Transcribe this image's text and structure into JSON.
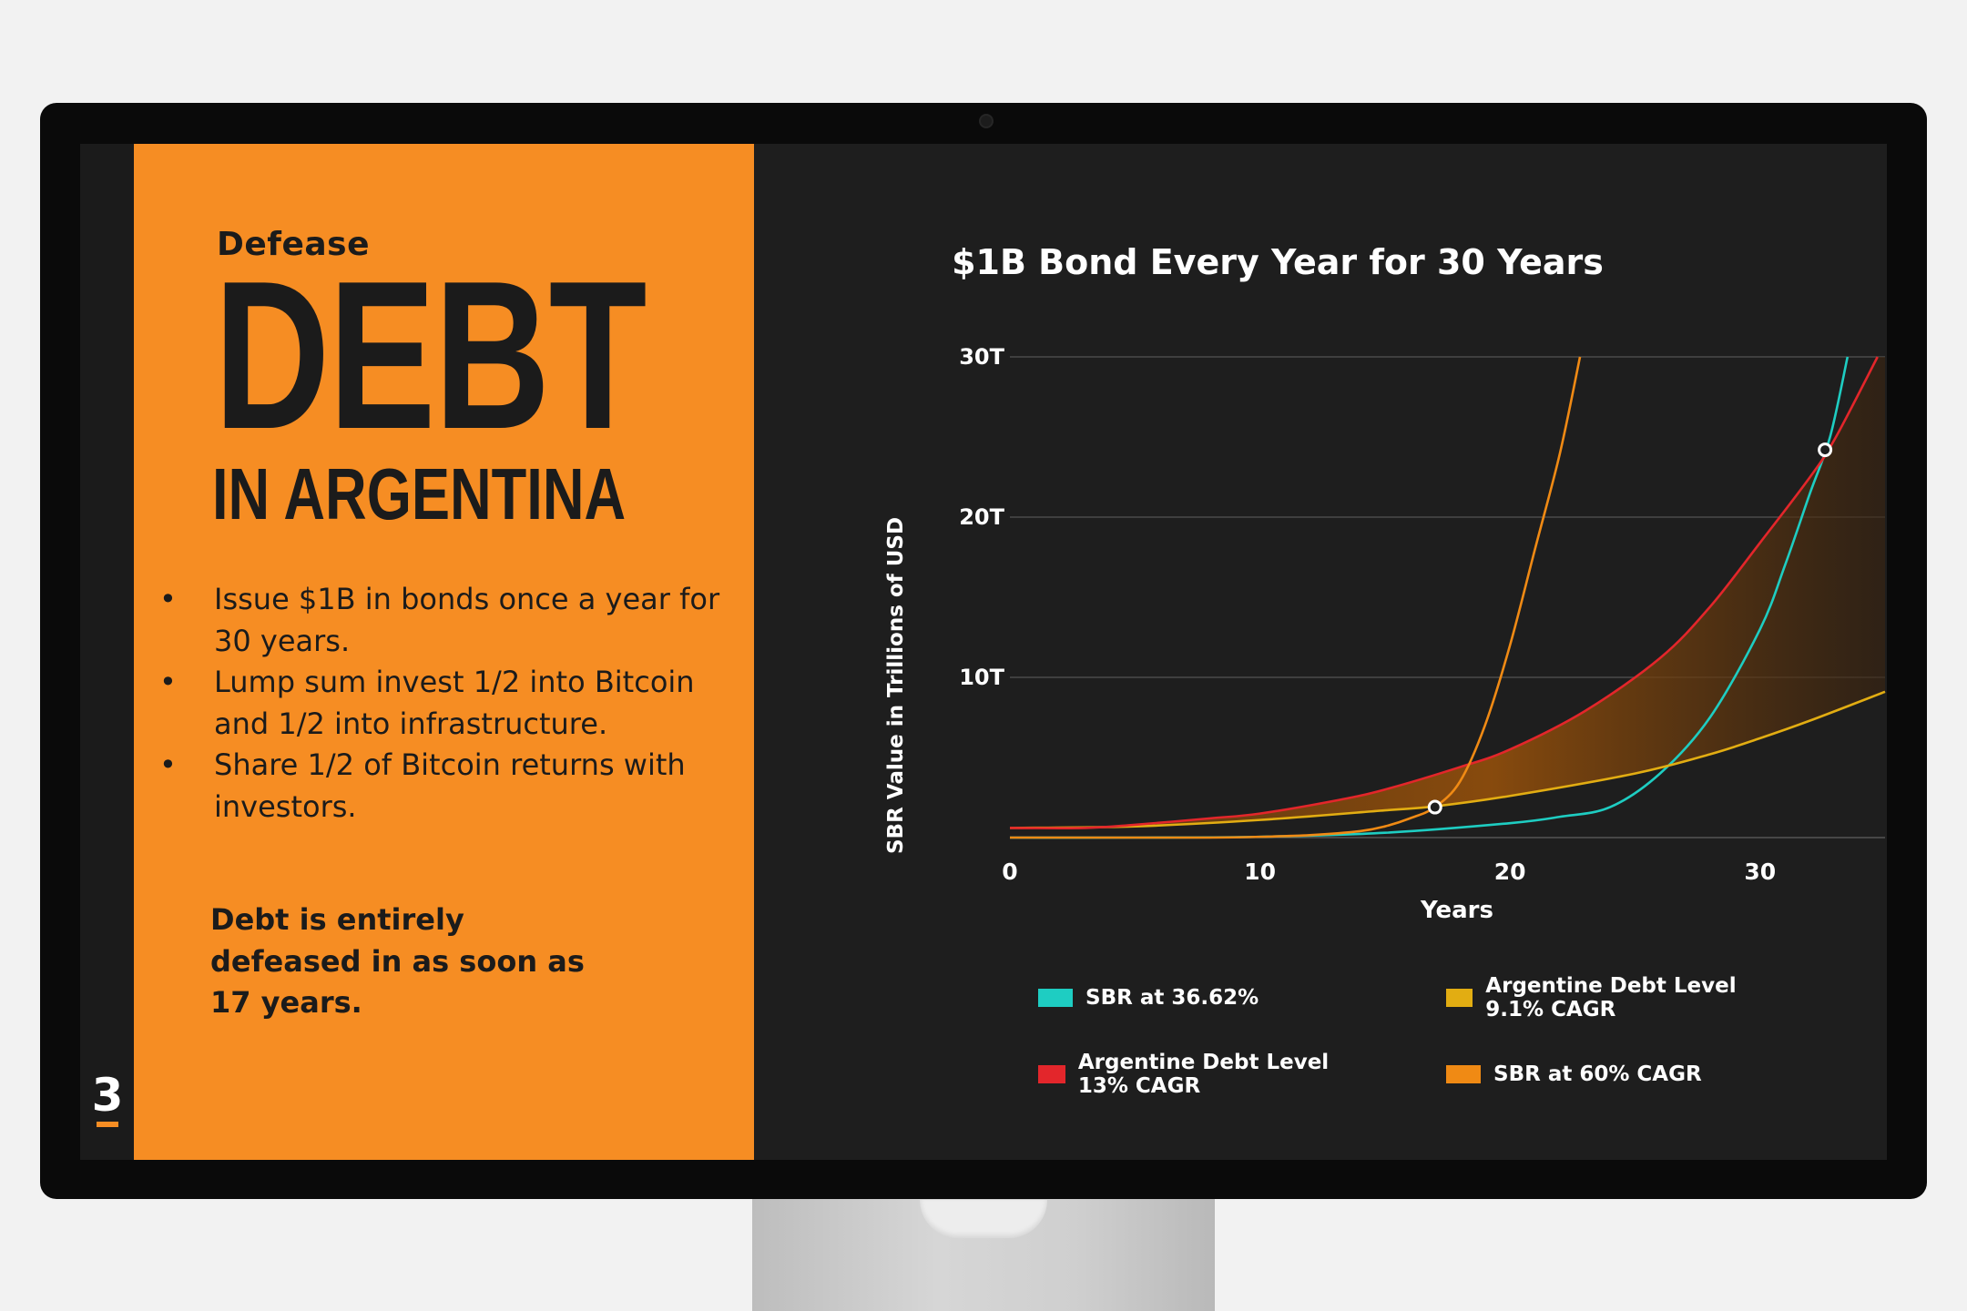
{
  "slide": {
    "kicker": "Defease",
    "headline": "DEBT",
    "subheadline": "IN ARGENTINA",
    "bullets": [
      "Issue $1B in bonds once a year for 30 years.",
      "Lump sum invest 1/2 into Bitcoin\nand 1/2 into infrastructure.",
      "Share 1/2 of Bitcoin returns with investors."
    ],
    "conclusion": "Debt is entirely defeased in as soon as 17 years.",
    "logo_glyph": "3"
  },
  "colors": {
    "orange_panel": "#f68d23",
    "screen_bg": "#1e1e1e",
    "teal": "#1ecdc2",
    "gold": "#e2ad12",
    "red": "#e3262b",
    "orange": "#f08a14"
  },
  "chart_data": {
    "type": "line",
    "title": "$1B Bond Every Year for 30 Years",
    "xlabel": "Years",
    "ylabel": "SBR Value in Trillions of USD",
    "xlim": [
      0,
      35
    ],
    "ylim": [
      0,
      30
    ],
    "x_ticks": [
      0,
      10,
      20,
      30
    ],
    "x_tick_labels": [
      "0",
      "10",
      "20",
      "30"
    ],
    "y_ticks": [
      10,
      20,
      30
    ],
    "y_tick_labels": [
      "10T",
      "20T",
      "30T"
    ],
    "grid": true,
    "legend_position": "bottom",
    "series": [
      {
        "name": "SBR at 36.62%",
        "color": "#1ecdc2",
        "points": [
          [
            0,
            0
          ],
          [
            5,
            0
          ],
          [
            10,
            0.05
          ],
          [
            15,
            0.3
          ],
          [
            20,
            0.9
          ],
          [
            22,
            1.3
          ],
          [
            24,
            1.9
          ],
          [
            26,
            4.0
          ],
          [
            28,
            7.5
          ],
          [
            30,
            13
          ],
          [
            31,
            17
          ],
          [
            32,
            21.5
          ],
          [
            32.8,
            25
          ],
          [
            33.5,
            30
          ]
        ]
      },
      {
        "name": "Argentine Debt Level 9.1% CAGR",
        "color": "#e2ad12",
        "points": [
          [
            0,
            0.6
          ],
          [
            5,
            0.7
          ],
          [
            10,
            1.1
          ],
          [
            15,
            1.7
          ],
          [
            17,
            1.95
          ],
          [
            20,
            2.6
          ],
          [
            25,
            4.0
          ],
          [
            28,
            5.2
          ],
          [
            30,
            6.2
          ],
          [
            32,
            7.3
          ],
          [
            35,
            9.1
          ]
        ]
      },
      {
        "name": "Argentine Debt Level 13% CAGR",
        "color": "#e3262b",
        "points": [
          [
            0,
            0.6
          ],
          [
            3,
            0.6
          ],
          [
            5,
            0.8
          ],
          [
            8,
            1.2
          ],
          [
            10,
            1.5
          ],
          [
            13,
            2.3
          ],
          [
            15,
            3.0
          ],
          [
            18,
            4.4
          ],
          [
            20,
            5.5
          ],
          [
            23,
            7.9
          ],
          [
            26,
            11.2
          ],
          [
            28,
            14.4
          ],
          [
            30,
            18.4
          ],
          [
            32,
            22.5
          ],
          [
            33,
            24.9
          ],
          [
            34.7,
            30
          ]
        ]
      },
      {
        "name": "SBR at 60% CAGR",
        "color": "#f08a14",
        "points": [
          [
            0,
            0
          ],
          [
            5,
            0
          ],
          [
            8,
            0
          ],
          [
            10,
            0.05
          ],
          [
            12,
            0.15
          ],
          [
            14,
            0.4
          ],
          [
            15,
            0.7
          ],
          [
            16,
            1.2
          ],
          [
            17,
            1.9
          ],
          [
            18,
            3.5
          ],
          [
            19,
            7.0
          ],
          [
            20,
            12.0
          ],
          [
            21,
            18.0
          ],
          [
            22,
            24.0
          ],
          [
            22.8,
            30
          ]
        ]
      }
    ],
    "markers": [
      [
        17,
        1.9
      ],
      [
        32.6,
        24.2
      ]
    ],
    "shaded_band": "between Argentine Debt Level 13% CAGR and Argentine Debt Level 9.1% CAGR"
  }
}
